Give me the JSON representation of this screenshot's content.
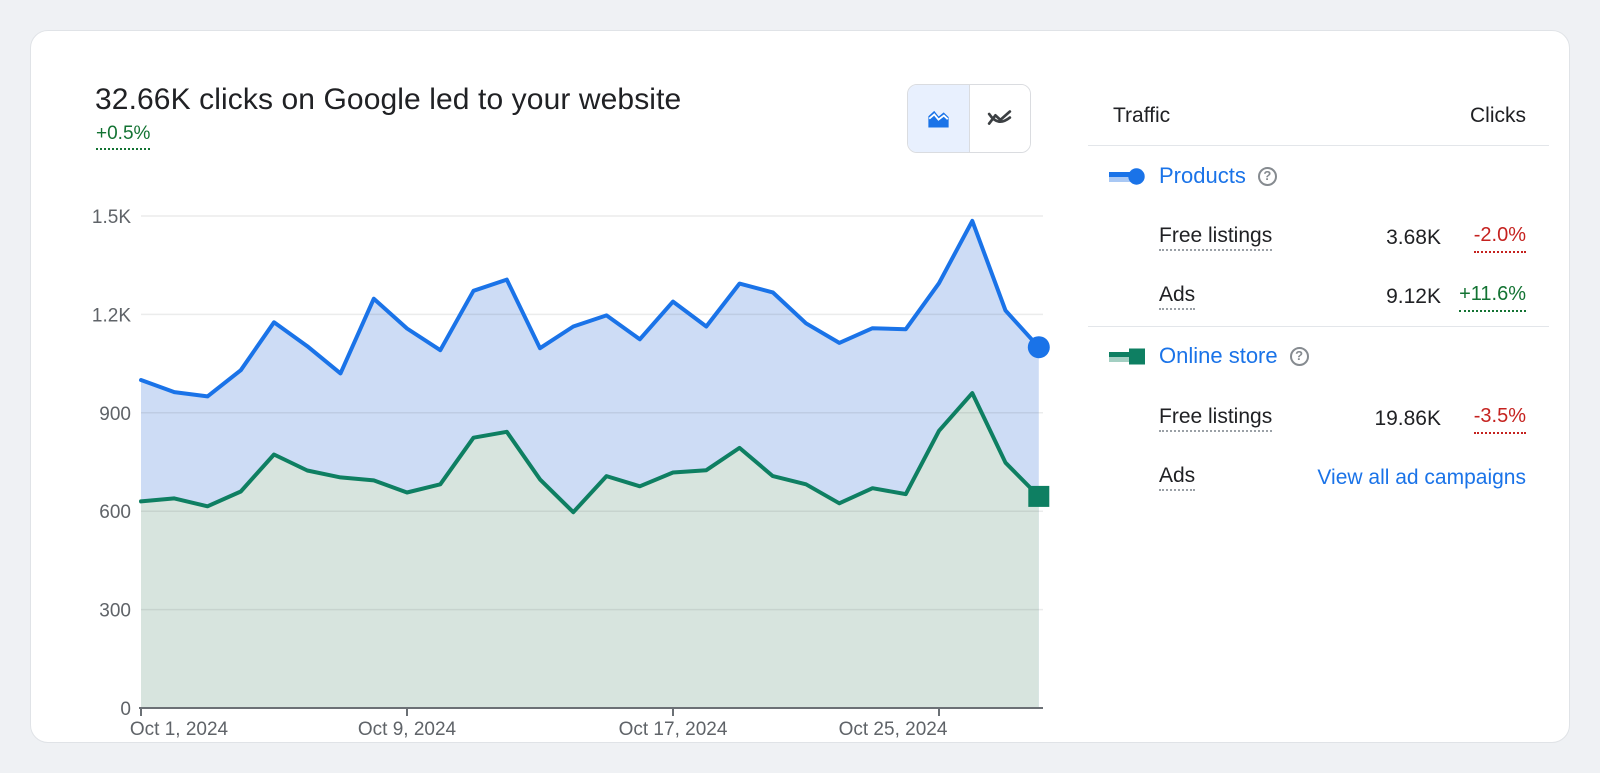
{
  "header": {
    "title": "32.66K clicks on Google led to your website",
    "delta": "+0.5%"
  },
  "toolbar": {
    "area_chart_toggle": "area-chart",
    "line_chart_toggle": "line-chart",
    "selected": "area-chart"
  },
  "panel": {
    "traffic_header": "Traffic",
    "clicks_header": "Clicks",
    "help_glyph": "?",
    "groups": [
      {
        "name": "Products",
        "marker": "circle",
        "color": "#1a73e8",
        "tint": "#a9c8f4",
        "rows": [
          {
            "label": "Free listings",
            "value": "3.68K",
            "delta": "-2.0%",
            "direction": "down"
          },
          {
            "label": "Ads",
            "value": "9.12K",
            "delta": "+11.6%",
            "direction": "up"
          }
        ]
      },
      {
        "name": "Online store",
        "marker": "square",
        "color": "#0e7f62",
        "tint": "#a3cfc2",
        "rows": [
          {
            "label": "Free listings",
            "value": "19.86K",
            "delta": "-3.5%",
            "direction": "down"
          },
          {
            "label": "Ads",
            "link": "View all ad campaigns"
          }
        ]
      }
    ]
  },
  "colors": {
    "positive": "#137333",
    "negative": "#c5221f",
    "link": "#1a73e8",
    "axis_label": "#5f6368",
    "axis_line": "#6b7075",
    "gridline": "rgba(60,64,67,0.10)",
    "selected_toggle_bg": "#e8f0fe"
  },
  "chart_data": {
    "type": "area",
    "title": "Clicks on Google by traffic type, Oct 1 - Oct 28, 2024",
    "xlabel": "",
    "ylabel": "Clicks",
    "ylim": [
      0,
      1500
    ],
    "grid": true,
    "legend_position": "right-panel",
    "x": [
      "Oct 1",
      "Oct 2",
      "Oct 3",
      "Oct 4",
      "Oct 5",
      "Oct 6",
      "Oct 7",
      "Oct 8",
      "Oct 9",
      "Oct 10",
      "Oct 11",
      "Oct 12",
      "Oct 13",
      "Oct 14",
      "Oct 15",
      "Oct 16",
      "Oct 17",
      "Oct 18",
      "Oct 19",
      "Oct 20",
      "Oct 21",
      "Oct 22",
      "Oct 23",
      "Oct 24",
      "Oct 25",
      "Oct 26",
      "Oct 27",
      "Oct 28"
    ],
    "series": [
      {
        "name": "Products",
        "color": "#1a73e8",
        "fill": "#cddcf5",
        "end_marker": "circle",
        "values": [
          1000,
          963,
          950,
          1030,
          1176,
          1103,
          1020,
          1248,
          1157,
          1091,
          1272,
          1306,
          1097,
          1163,
          1197,
          1124,
          1239,
          1163,
          1294,
          1267,
          1173,
          1113,
          1158,
          1155,
          1295,
          1485,
          1212,
          1100
        ]
      },
      {
        "name": "Online store",
        "color": "#0e7f62",
        "fill": "#d7e4de",
        "end_marker": "square",
        "values": [
          630,
          639,
          615,
          660,
          773,
          724,
          703,
          694,
          657,
          682,
          824,
          842,
          697,
          597,
          707,
          676,
          718,
          725,
          793,
          707,
          682,
          624,
          670,
          652,
          845,
          960,
          748,
          645
        ]
      }
    ],
    "y_ticks": [
      {
        "v": 0,
        "label": "0"
      },
      {
        "v": 300,
        "label": "300"
      },
      {
        "v": 600,
        "label": "600"
      },
      {
        "v": 900,
        "label": "900"
      },
      {
        "v": 1200,
        "label": "1.2K"
      },
      {
        "v": 1500,
        "label": "1.5K"
      }
    ],
    "x_ticks": [
      {
        "day": 1,
        "label": "Oct 1, 2024",
        "label_shift": 38
      },
      {
        "day": 9,
        "label": "Oct 9, 2024",
        "label_shift": 0
      },
      {
        "day": 17,
        "label": "Oct 17, 2024",
        "label_shift": 0
      },
      {
        "day": 25,
        "label": "Oct 25, 2024",
        "label_shift": -46
      }
    ]
  }
}
